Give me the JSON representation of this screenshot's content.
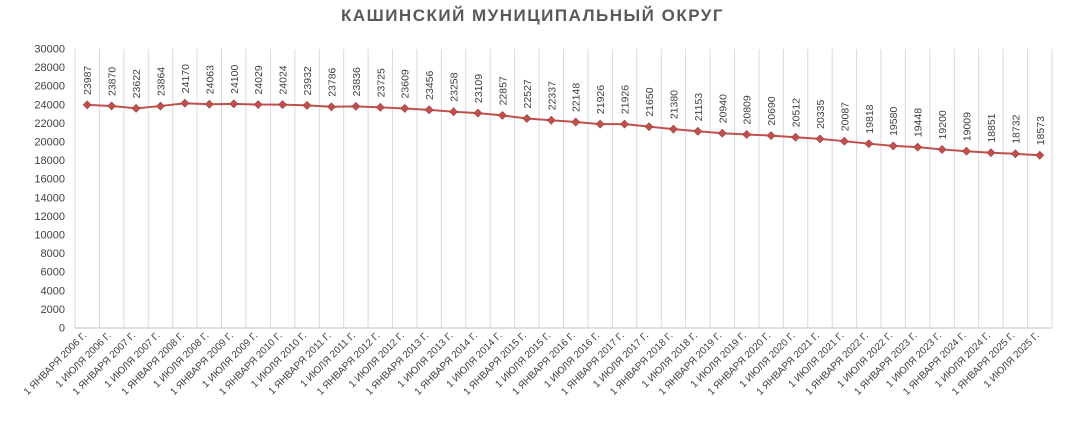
{
  "chart_data": {
    "type": "line",
    "title": "КАШИНСКИЙ МУНИЦИПАЛЬНЫЙ ОКРУГ",
    "xlabel": "",
    "ylabel": "",
    "ylim": [
      0,
      30000
    ],
    "y_ticks": [
      0,
      2000,
      4000,
      6000,
      8000,
      10000,
      12000,
      14000,
      16000,
      18000,
      20000,
      22000,
      24000,
      26000,
      28000,
      30000
    ],
    "grid": "vertical",
    "legend": "none",
    "categories": [
      "1 ЯНВАРЯ 2006 Г.",
      "1 ИЮЛЯ 2006 Г.",
      "1 ЯНВАРЯ 2007 Г.",
      "1 ИЮЛЯ 2007 Г.",
      "1 ЯНВАРЯ 2008 Г.",
      "1 ИЮЛЯ 2008 Г.",
      "1 ЯНВАРЯ 2009 Г.",
      "1 ИЮЛЯ 2009 Г.",
      "1 ЯНВАРЯ 2010 Г.",
      "1 ИЮЛЯ 2010 Г.",
      "1 ЯНВАРЯ 2011 Г.",
      "1 ИЮЛЯ 2011 Г.",
      "1 ЯНВАРЯ 2012 Г.",
      "1 ИЮЛЯ 2012 Г.",
      "1 ЯНВАРЯ 2013 Г.",
      "1 ИЮЛЯ 2013 Г.",
      "1 ЯНВАРЯ 2014 Г.",
      "1 ИЮЛЯ 2014 Г.",
      "1 ЯНВАРЯ 2015 Г.",
      "1 ИЮЛЯ 2015 Г.",
      "1 ЯНВАРЯ 2016 Г.",
      "1 ИЮЛЯ 2016 Г.",
      "1 ЯНВАРЯ 2017 Г.",
      "1 ИЮЛЯ 2017 Г.",
      "1 ЯНВАРЯ 2018 Г.",
      "1 ИЮЛЯ 2018 Г.",
      "1 ЯНВАРЯ 2019 Г.",
      "1 ИЮЛЯ 2019 Г.",
      "1 ЯНВАРЯ 2020 Г.",
      "1 ИЮЛЯ 2020 Г.",
      "1 ЯНВАРЯ 2021 Г.",
      "1 ИЮЛЯ 2021 Г.",
      "1 ЯНВАРЯ 2022 Г.",
      "1 ИЮЛЯ 2022 Г.",
      "1 ЯНВАРЯ 2023 Г.",
      "1 ИЮЛЯ 2023 Г.",
      "1 ЯНВАРЯ 2024 Г.",
      "1 ИЮЛЯ 2024 Г.",
      "1 ЯНВАРЯ 2025 Г.",
      "1 ИЮЛЯ 2025 Г."
    ],
    "values": [
      23987,
      23870,
      23622,
      23864,
      24170,
      24063,
      24100,
      24029,
      24024,
      23932,
      23786,
      23836,
      23725,
      23609,
      23456,
      23258,
      23109,
      22857,
      22527,
      22337,
      22148,
      21926,
      21926,
      21650,
      21380,
      21153,
      20940,
      20809,
      20690,
      20512,
      20335,
      20087,
      19818,
      19580,
      19448,
      19200,
      19009,
      18851,
      18732,
      18573
    ],
    "line_color": "#c0504d",
    "marker": "diamond",
    "data_labels": "vertical-above"
  }
}
